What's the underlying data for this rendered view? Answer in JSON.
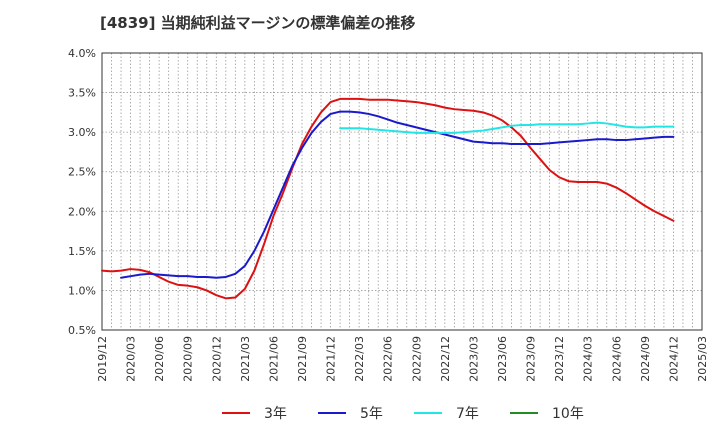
{
  "chart_data": {
    "type": "line",
    "title": "[4839]  当期純利益マージンの標準偏差の推移",
    "y_ticks": [
      "0.5%",
      "1.0%",
      "1.5%",
      "2.0%",
      "2.5%",
      "3.0%",
      "3.5%",
      "4.0%"
    ],
    "ylim": [
      0.5,
      4.0
    ],
    "x_ticks": [
      "2019/12",
      "2020/03",
      "2020/06",
      "2020/09",
      "2020/12",
      "2021/03",
      "2021/06",
      "2021/09",
      "2021/12",
      "2022/03",
      "2022/06",
      "2022/09",
      "2022/12",
      "2023/03",
      "2023/06",
      "2023/09",
      "2023/12",
      "2024/03",
      "2024/06",
      "2024/09",
      "2024/12",
      "2025/03"
    ],
    "grid": true,
    "legend_position": "bottom",
    "series": [
      {
        "name": "3年",
        "color": "#dd1111",
        "points": [
          [
            "2019/12",
            1.25
          ],
          [
            "2020/01",
            1.24
          ],
          [
            "2020/02",
            1.25
          ],
          [
            "2020/03",
            1.27
          ],
          [
            "2020/04",
            1.26
          ],
          [
            "2020/05",
            1.23
          ],
          [
            "2020/06",
            1.17
          ],
          [
            "2020/07",
            1.11
          ],
          [
            "2020/08",
            1.07
          ],
          [
            "2020/09",
            1.06
          ],
          [
            "2020/10",
            1.04
          ],
          [
            "2020/11",
            1.0
          ],
          [
            "2020/12",
            0.94
          ],
          [
            "2021/01",
            0.9
          ],
          [
            "2021/02",
            0.91
          ],
          [
            "2021/03",
            1.02
          ],
          [
            "2021/04",
            1.25
          ],
          [
            "2021/05",
            1.58
          ],
          [
            "2021/06",
            1.94
          ],
          [
            "2021/07",
            2.23
          ],
          [
            "2021/08",
            2.55
          ],
          [
            "2021/09",
            2.85
          ],
          [
            "2021/10",
            3.07
          ],
          [
            "2021/11",
            3.25
          ],
          [
            "2021/12",
            3.38
          ],
          [
            "2022/01",
            3.42
          ],
          [
            "2022/02",
            3.42
          ],
          [
            "2022/03",
            3.42
          ],
          [
            "2022/04",
            3.41
          ],
          [
            "2022/05",
            3.41
          ],
          [
            "2022/06",
            3.41
          ],
          [
            "2022/07",
            3.4
          ],
          [
            "2022/08",
            3.39
          ],
          [
            "2022/09",
            3.38
          ],
          [
            "2022/10",
            3.36
          ],
          [
            "2022/11",
            3.34
          ],
          [
            "2022/12",
            3.31
          ],
          [
            "2023/01",
            3.29
          ],
          [
            "2023/02",
            3.28
          ],
          [
            "2023/03",
            3.27
          ],
          [
            "2023/04",
            3.25
          ],
          [
            "2023/05",
            3.21
          ],
          [
            "2023/06",
            3.15
          ],
          [
            "2023/07",
            3.06
          ],
          [
            "2023/08",
            2.95
          ],
          [
            "2023/09",
            2.8
          ],
          [
            "2023/10",
            2.66
          ],
          [
            "2023/11",
            2.52
          ],
          [
            "2023/12",
            2.43
          ],
          [
            "2024/01",
            2.38
          ],
          [
            "2024/02",
            2.37
          ],
          [
            "2024/03",
            2.37
          ],
          [
            "2024/04",
            2.37
          ],
          [
            "2024/05",
            2.35
          ],
          [
            "2024/06",
            2.3
          ],
          [
            "2024/07",
            2.23
          ],
          [
            "2024/08",
            2.15
          ],
          [
            "2024/09",
            2.07
          ],
          [
            "2024/10",
            2.0
          ],
          [
            "2024/11",
            1.94
          ],
          [
            "2024/12",
            1.88
          ]
        ]
      },
      {
        "name": "5年",
        "color": "#1a1acc",
        "points": [
          [
            "2020/02",
            1.16
          ],
          [
            "2020/03",
            1.18
          ],
          [
            "2020/04",
            1.2
          ],
          [
            "2020/05",
            1.21
          ],
          [
            "2020/06",
            1.2
          ],
          [
            "2020/07",
            1.19
          ],
          [
            "2020/08",
            1.18
          ],
          [
            "2020/09",
            1.18
          ],
          [
            "2020/10",
            1.17
          ],
          [
            "2020/11",
            1.17
          ],
          [
            "2020/12",
            1.16
          ],
          [
            "2021/01",
            1.17
          ],
          [
            "2021/02",
            1.21
          ],
          [
            "2021/03",
            1.31
          ],
          [
            "2021/04",
            1.5
          ],
          [
            "2021/05",
            1.74
          ],
          [
            "2021/06",
            2.02
          ],
          [
            "2021/07",
            2.3
          ],
          [
            "2021/08",
            2.58
          ],
          [
            "2021/09",
            2.8
          ],
          [
            "2021/10",
            2.99
          ],
          [
            "2021/11",
            3.13
          ],
          [
            "2021/12",
            3.23
          ],
          [
            "2022/01",
            3.26
          ],
          [
            "2022/02",
            3.26
          ],
          [
            "2022/03",
            3.25
          ],
          [
            "2022/04",
            3.23
          ],
          [
            "2022/05",
            3.2
          ],
          [
            "2022/06",
            3.16
          ],
          [
            "2022/07",
            3.12
          ],
          [
            "2022/08",
            3.09
          ],
          [
            "2022/09",
            3.06
          ],
          [
            "2022/10",
            3.03
          ],
          [
            "2022/11",
            3.0
          ],
          [
            "2022/12",
            2.97
          ],
          [
            "2023/01",
            2.94
          ],
          [
            "2023/02",
            2.91
          ],
          [
            "2023/03",
            2.88
          ],
          [
            "2023/04",
            2.87
          ],
          [
            "2023/05",
            2.86
          ],
          [
            "2023/06",
            2.86
          ],
          [
            "2023/07",
            2.85
          ],
          [
            "2023/08",
            2.85
          ],
          [
            "2023/09",
            2.85
          ],
          [
            "2023/10",
            2.85
          ],
          [
            "2023/11",
            2.86
          ],
          [
            "2023/12",
            2.87
          ],
          [
            "2024/01",
            2.88
          ],
          [
            "2024/02",
            2.89
          ],
          [
            "2024/03",
            2.9
          ],
          [
            "2024/04",
            2.91
          ],
          [
            "2024/05",
            2.91
          ],
          [
            "2024/06",
            2.9
          ],
          [
            "2024/07",
            2.9
          ],
          [
            "2024/08",
            2.91
          ],
          [
            "2024/09",
            2.92
          ],
          [
            "2024/10",
            2.93
          ],
          [
            "2024/11",
            2.94
          ],
          [
            "2024/12",
            2.94
          ]
        ]
      },
      {
        "name": "7年",
        "color": "#22e5e5",
        "points": [
          [
            "2022/01",
            3.05
          ],
          [
            "2022/02",
            3.05
          ],
          [
            "2022/03",
            3.05
          ],
          [
            "2022/04",
            3.04
          ],
          [
            "2022/05",
            3.03
          ],
          [
            "2022/06",
            3.02
          ],
          [
            "2022/07",
            3.01
          ],
          [
            "2022/08",
            3.0
          ],
          [
            "2022/09",
            2.99
          ],
          [
            "2022/10",
            2.99
          ],
          [
            "2022/11",
            2.99
          ],
          [
            "2022/12",
            2.99
          ],
          [
            "2023/01",
            2.99
          ],
          [
            "2023/02",
            3.0
          ],
          [
            "2023/03",
            3.01
          ],
          [
            "2023/04",
            3.02
          ],
          [
            "2023/05",
            3.04
          ],
          [
            "2023/06",
            3.06
          ],
          [
            "2023/07",
            3.08
          ],
          [
            "2023/08",
            3.09
          ],
          [
            "2023/09",
            3.09
          ],
          [
            "2023/10",
            3.1
          ],
          [
            "2023/11",
            3.1
          ],
          [
            "2023/12",
            3.1
          ],
          [
            "2024/01",
            3.1
          ],
          [
            "2024/02",
            3.1
          ],
          [
            "2024/03",
            3.11
          ],
          [
            "2024/04",
            3.12
          ],
          [
            "2024/05",
            3.11
          ],
          [
            "2024/06",
            3.09
          ],
          [
            "2024/07",
            3.07
          ],
          [
            "2024/08",
            3.06
          ],
          [
            "2024/09",
            3.06
          ],
          [
            "2024/10",
            3.07
          ],
          [
            "2024/11",
            3.07
          ],
          [
            "2024/12",
            3.07
          ]
        ]
      },
      {
        "name": "10年",
        "color": "#228b22",
        "points": []
      }
    ]
  }
}
